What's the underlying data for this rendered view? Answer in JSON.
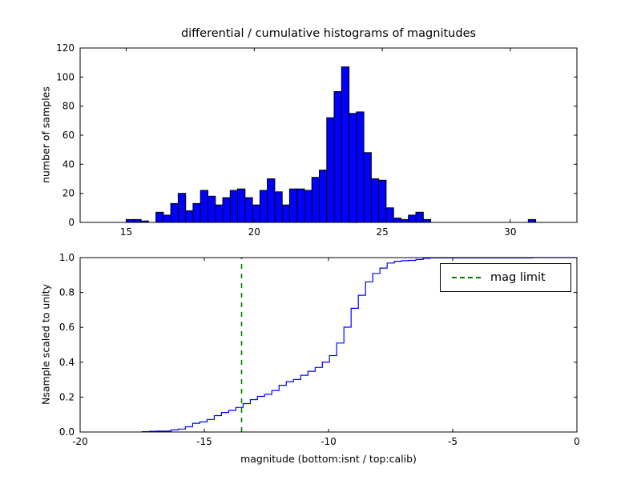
{
  "figure": {
    "background": "#ffffff"
  },
  "chart_data": [
    {
      "type": "bar",
      "subplot": "top",
      "title": "differential / cumulative histograms of magnitudes",
      "ylabel": "number of samples",
      "xlim": [
        13.2,
        32.6
      ],
      "ylim": [
        0,
        120
      ],
      "xticks": {
        "values": [
          15,
          20,
          25,
          30
        ],
        "labels": [
          "15",
          "20",
          "25",
          "30"
        ]
      },
      "yticks": {
        "values": [
          0,
          20,
          40,
          60,
          80,
          100,
          120
        ],
        "labels": [
          "0",
          "20",
          "40",
          "60",
          "80",
          "100",
          "120"
        ]
      },
      "bar_fill": "#0000ff",
      "bar_edge": "#000000",
      "bin_start": 15.0,
      "bin_width": 0.29,
      "counts": [
        2,
        2,
        1,
        0,
        7,
        5,
        13,
        20,
        8,
        13,
        22,
        18,
        12,
        17,
        22,
        23,
        17,
        12,
        22,
        30,
        21,
        12,
        23,
        23,
        22,
        31,
        36,
        72,
        90,
        107,
        75,
        76,
        48,
        30,
        29,
        10,
        3,
        2,
        5,
        7,
        2
      ],
      "outlier_bin": {
        "left": 30.7,
        "count": 2
      }
    },
    {
      "type": "line",
      "subplot": "bottom",
      "xlabel": "magnitude (bottom:isnt / top:calib)",
      "ylabel": "Nsample scaled to unity",
      "xlim": [
        -20,
        0
      ],
      "ylim": [
        0.0,
        1.0
      ],
      "xticks": {
        "values": [
          -20,
          -15,
          -10,
          -5,
          0
        ],
        "labels": [
          "-20",
          "-15",
          "-10",
          "-5",
          "0"
        ]
      },
      "yticks": {
        "values": [
          0.0,
          0.2,
          0.4,
          0.6,
          0.8,
          1.0
        ],
        "labels": [
          "0.0",
          "0.2",
          "0.4",
          "0.6",
          "0.8",
          "1.0"
        ]
      },
      "line_color": "#0000ff",
      "step_start": -17.5,
      "step_width": 0.29,
      "cumulative_fractions": [
        0.002,
        0.004,
        0.005,
        0.005,
        0.012,
        0.017,
        0.03,
        0.05,
        0.058,
        0.072,
        0.094,
        0.112,
        0.124,
        0.141,
        0.163,
        0.186,
        0.204,
        0.216,
        0.238,
        0.268,
        0.289,
        0.301,
        0.325,
        0.348,
        0.37,
        0.401,
        0.438,
        0.51,
        0.601,
        0.709,
        0.784,
        0.861,
        0.909,
        0.94,
        0.969,
        0.979,
        0.982,
        0.984,
        0.989,
        0.996,
        0.998
      ],
      "final_step": {
        "x": -1.8,
        "y": 1.0
      },
      "mag_limit_line": {
        "x": -13.5,
        "color": "#008000",
        "dash": "6,6",
        "label": "mag limit"
      },
      "legend": {
        "label": "mag limit",
        "position": "upper right"
      }
    }
  ]
}
